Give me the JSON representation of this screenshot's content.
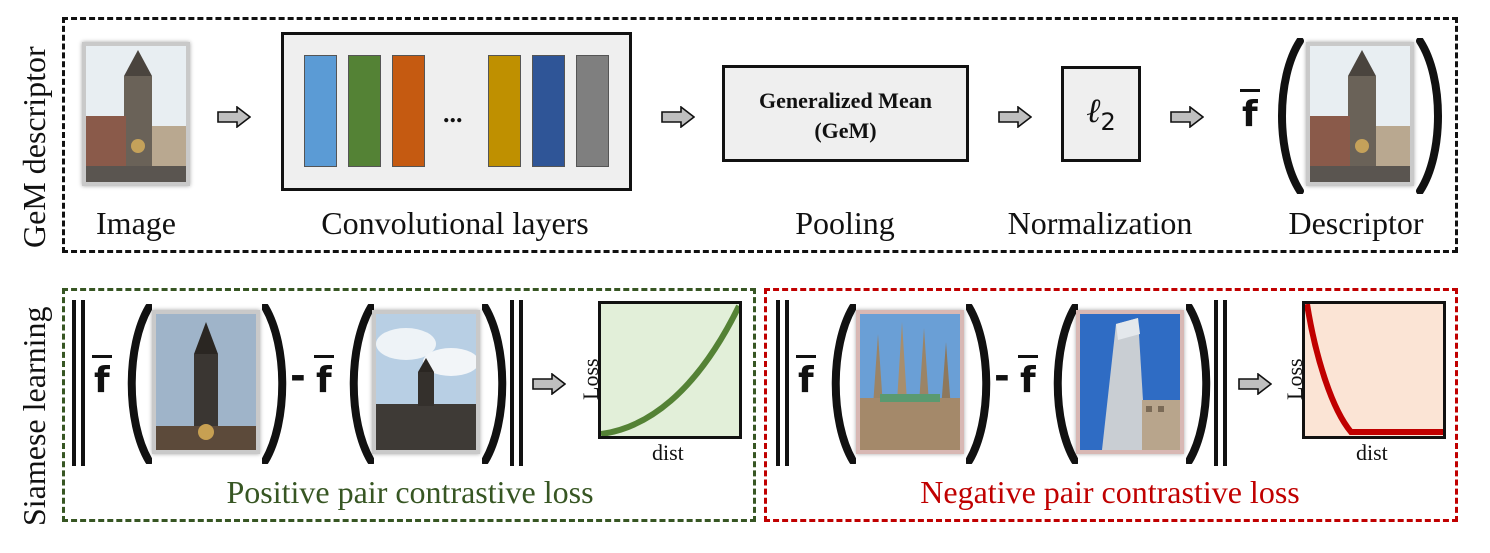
{
  "sections": {
    "gem_label": "GeM descriptor",
    "siamese_label": "Siamese learning"
  },
  "pipeline": {
    "image_caption": "Image",
    "conv_caption": "Convolutional layers",
    "conv_ellipsis": "...",
    "conv_layer_colors": [
      "#5b9bd5",
      "#548235",
      "#c55a11",
      "#bf9000",
      "#2f5597",
      "#7f7f7f"
    ],
    "pool_box_line1": "Generalized Mean",
    "pool_box_line2": "(GeM)",
    "pool_caption": "Pooling",
    "norm_symbol": "ℓ",
    "norm_subscript": "2",
    "norm_caption": "Normalization",
    "descriptor_symbol": "f",
    "descriptor_caption": "Descriptor"
  },
  "positive": {
    "title": "Positive pair contrastive loss",
    "border_color": "#375623",
    "curve_color": "#548235",
    "plot_fill": "#e2efd9",
    "symbol": "f",
    "minus": "-",
    "ylabel": "Loss",
    "xlabel": "dist"
  },
  "negative": {
    "title": "Negative pair contrastive loss",
    "border_color": "#c00000",
    "curve_color": "#c00000",
    "plot_fill": "#fbe4d5",
    "symbol": "f",
    "minus": "-",
    "ylabel": "Loss",
    "xlabel": "dist"
  },
  "icons": [
    "arrow-right-icon",
    "tower-photo",
    "city-hall-photo",
    "sagrada-familia-photo",
    "skyscraper-photo"
  ]
}
